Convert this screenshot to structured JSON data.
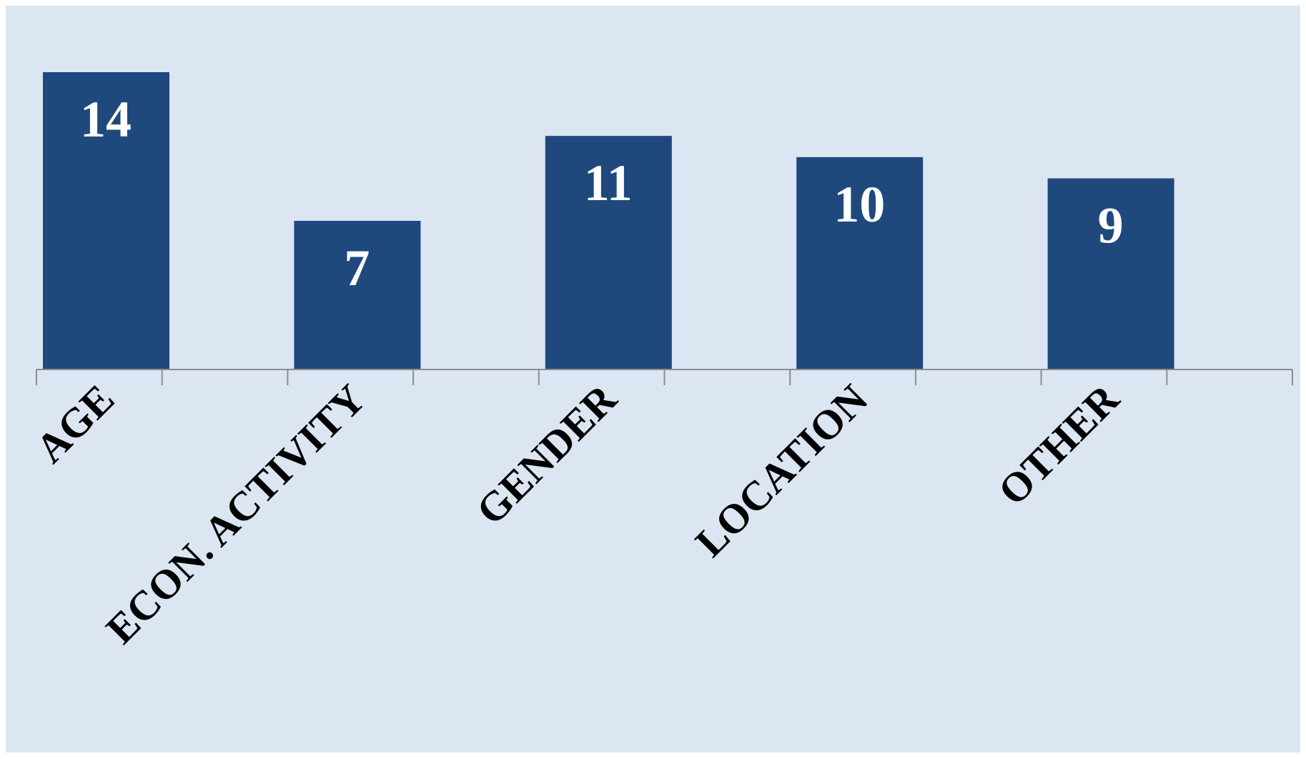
{
  "chart_data": {
    "type": "bar",
    "categories": [
      "AGE",
      "ECON. ACTIVITY",
      "GENDER",
      "LOCATION",
      "OTHER"
    ],
    "values": [
      14,
      7,
      11,
      10,
      9
    ],
    "color": "#1f497d"
  }
}
